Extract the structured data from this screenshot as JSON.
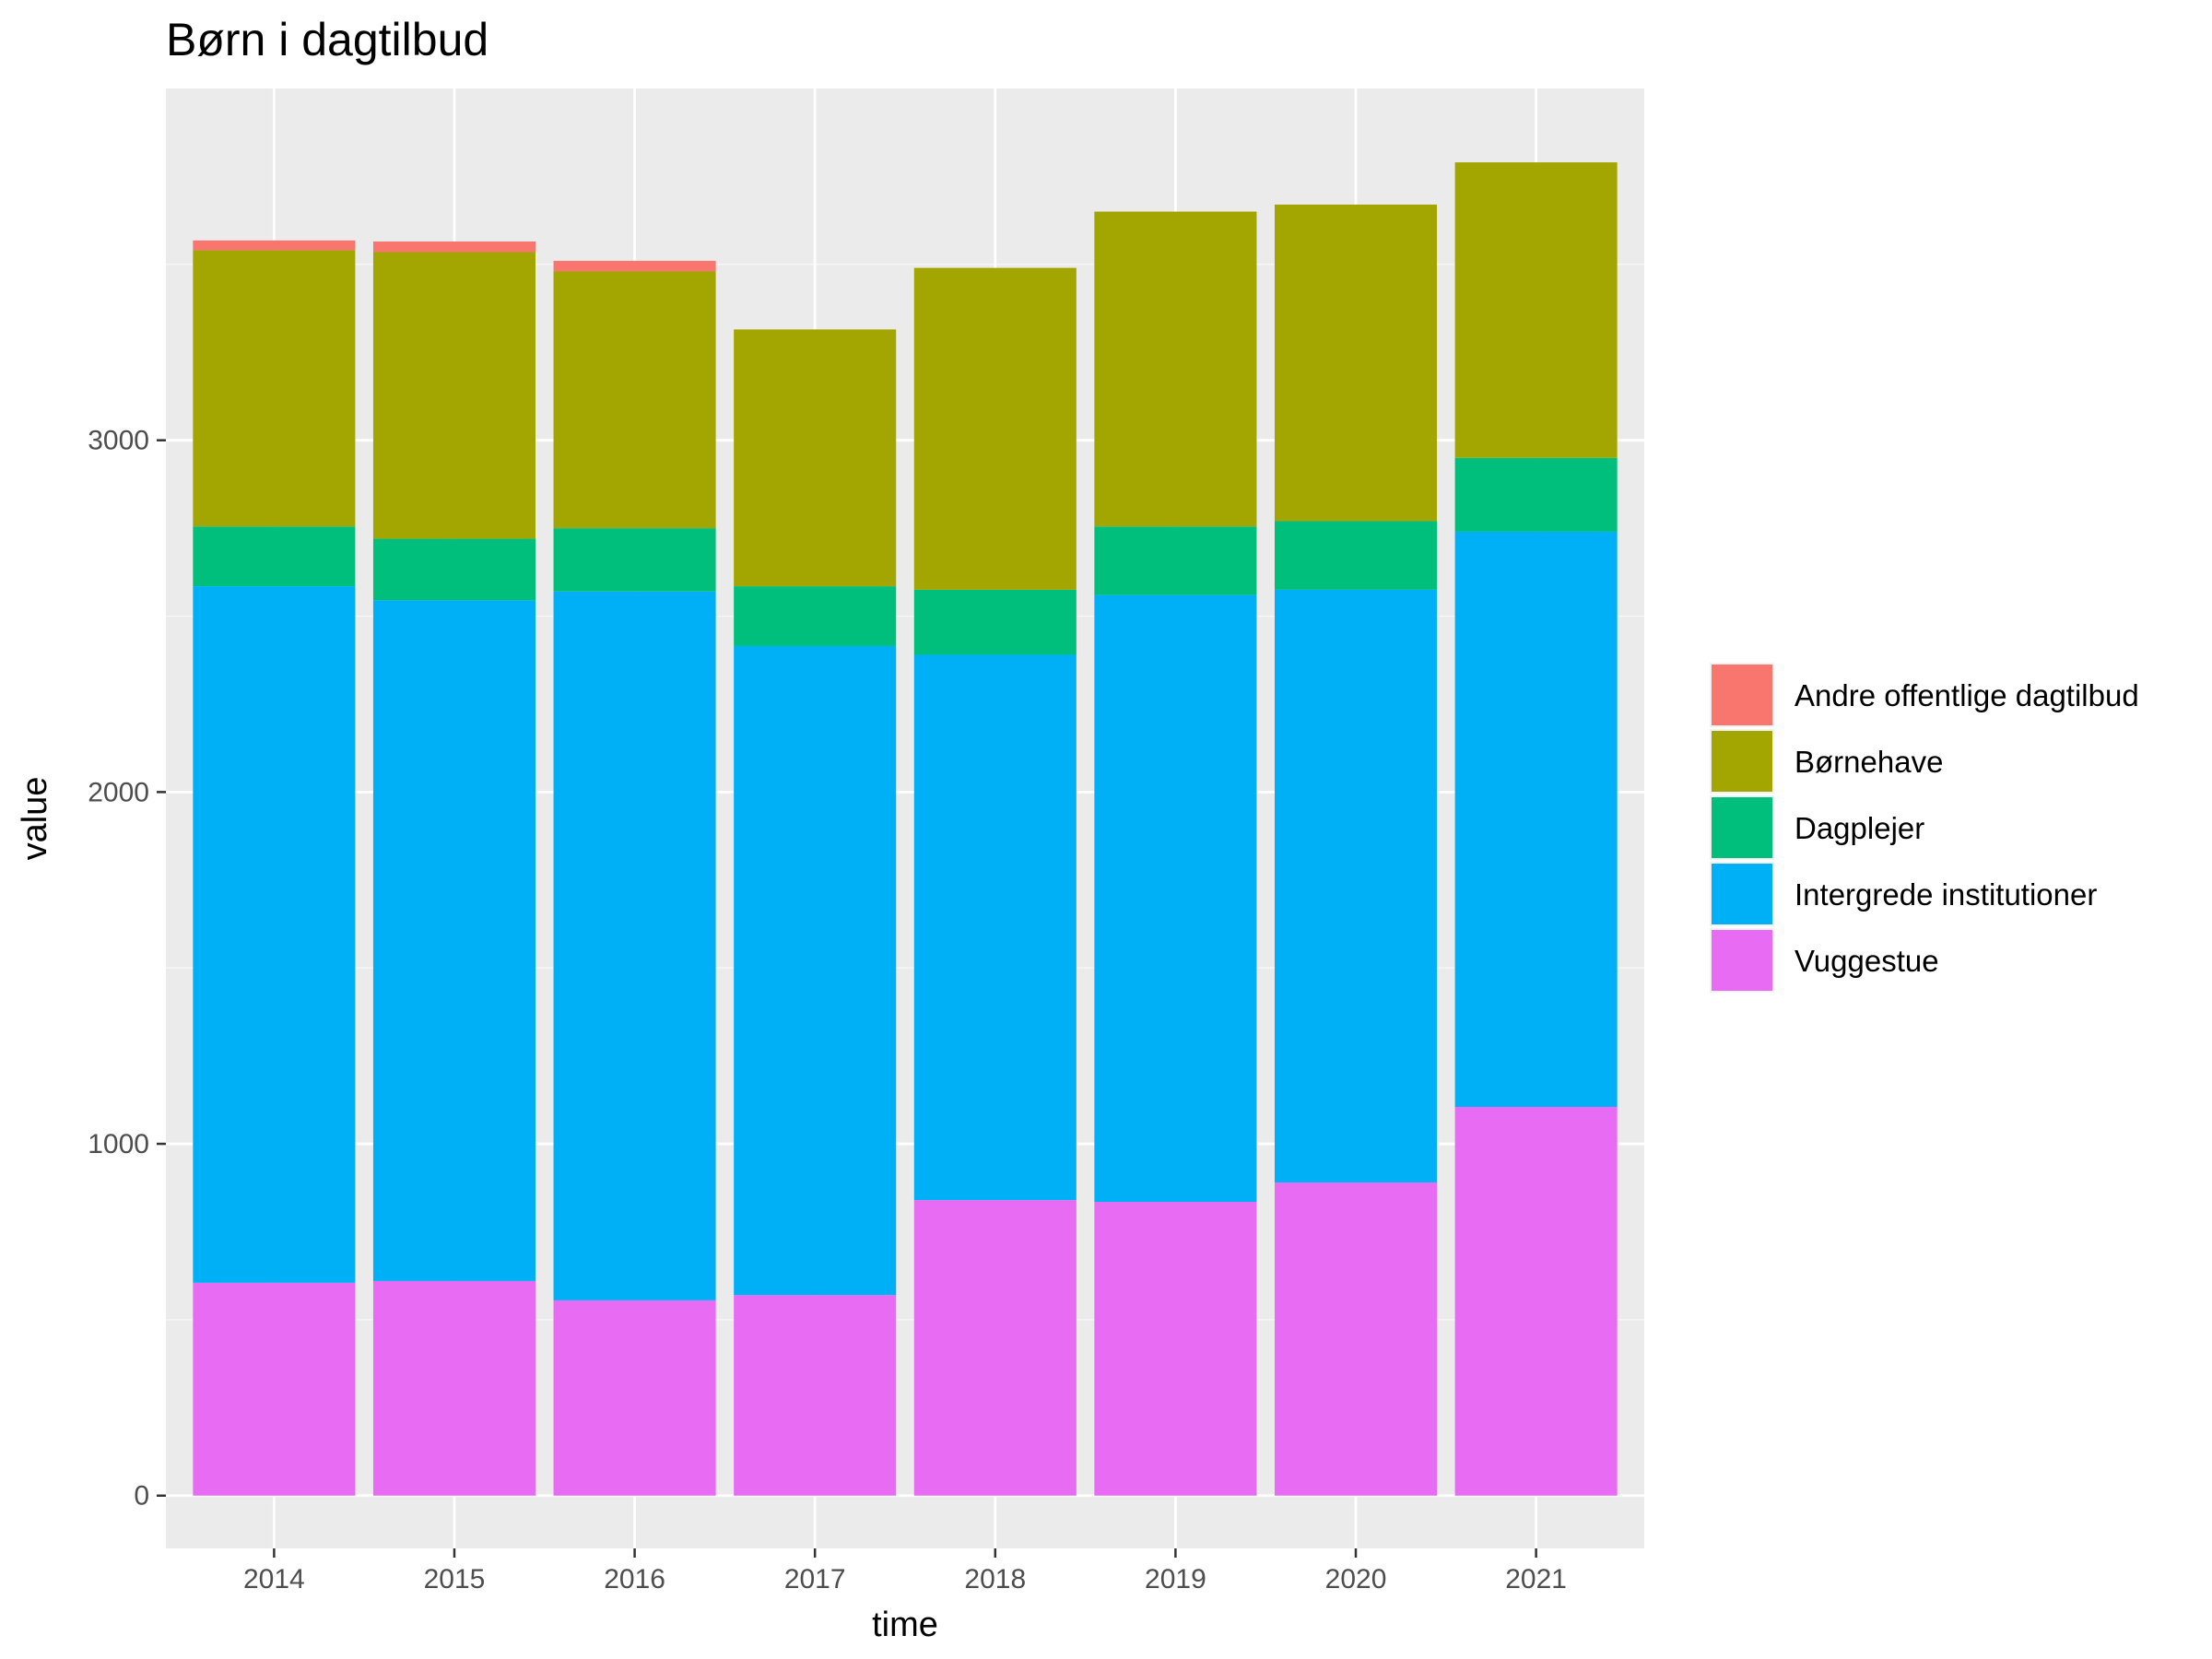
{
  "chart_data": {
    "type": "bar",
    "stacked": true,
    "title": "Børn i dagtilbud",
    "xlabel": "time",
    "ylabel": "value",
    "categories": [
      "2014",
      "2015",
      "2016",
      "2017",
      "2018",
      "2019",
      "2020",
      "2021"
    ],
    "ylim": [
      -150,
      4000
    ],
    "yticks": [
      0,
      1000,
      2000,
      3000
    ],
    "ytick_labels": [
      "0",
      "1000",
      "2000",
      "3000"
    ],
    "grid": true,
    "legend_position": "right",
    "series": [
      {
        "name": "Vuggestue",
        "color": "#E76BF3",
        "values": [
          605,
          610,
          555,
          570,
          840,
          835,
          890,
          1105
        ]
      },
      {
        "name": "Intergrede institutioner",
        "color": "#00B0F6",
        "values": [
          1980,
          1935,
          2015,
          1845,
          1550,
          1725,
          1685,
          1635
        ]
      },
      {
        "name": "Dagplejer",
        "color": "#00BF7D",
        "values": [
          170,
          175,
          180,
          170,
          185,
          195,
          195,
          210
        ]
      },
      {
        "name": "Børnehave",
        "color": "#A3A500",
        "values": [
          785,
          815,
          730,
          730,
          915,
          895,
          900,
          840
        ]
      },
      {
        "name": "Andre offentlige dagtilbud",
        "color": "#F8766D",
        "values": [
          28,
          30,
          30,
          0,
          0,
          0,
          0,
          0
        ]
      }
    ],
    "legend_order": [
      "Andre offentlige dagtilbud",
      "Børnehave",
      "Dagplejer",
      "Intergrede institutioner",
      "Vuggestue"
    ]
  }
}
